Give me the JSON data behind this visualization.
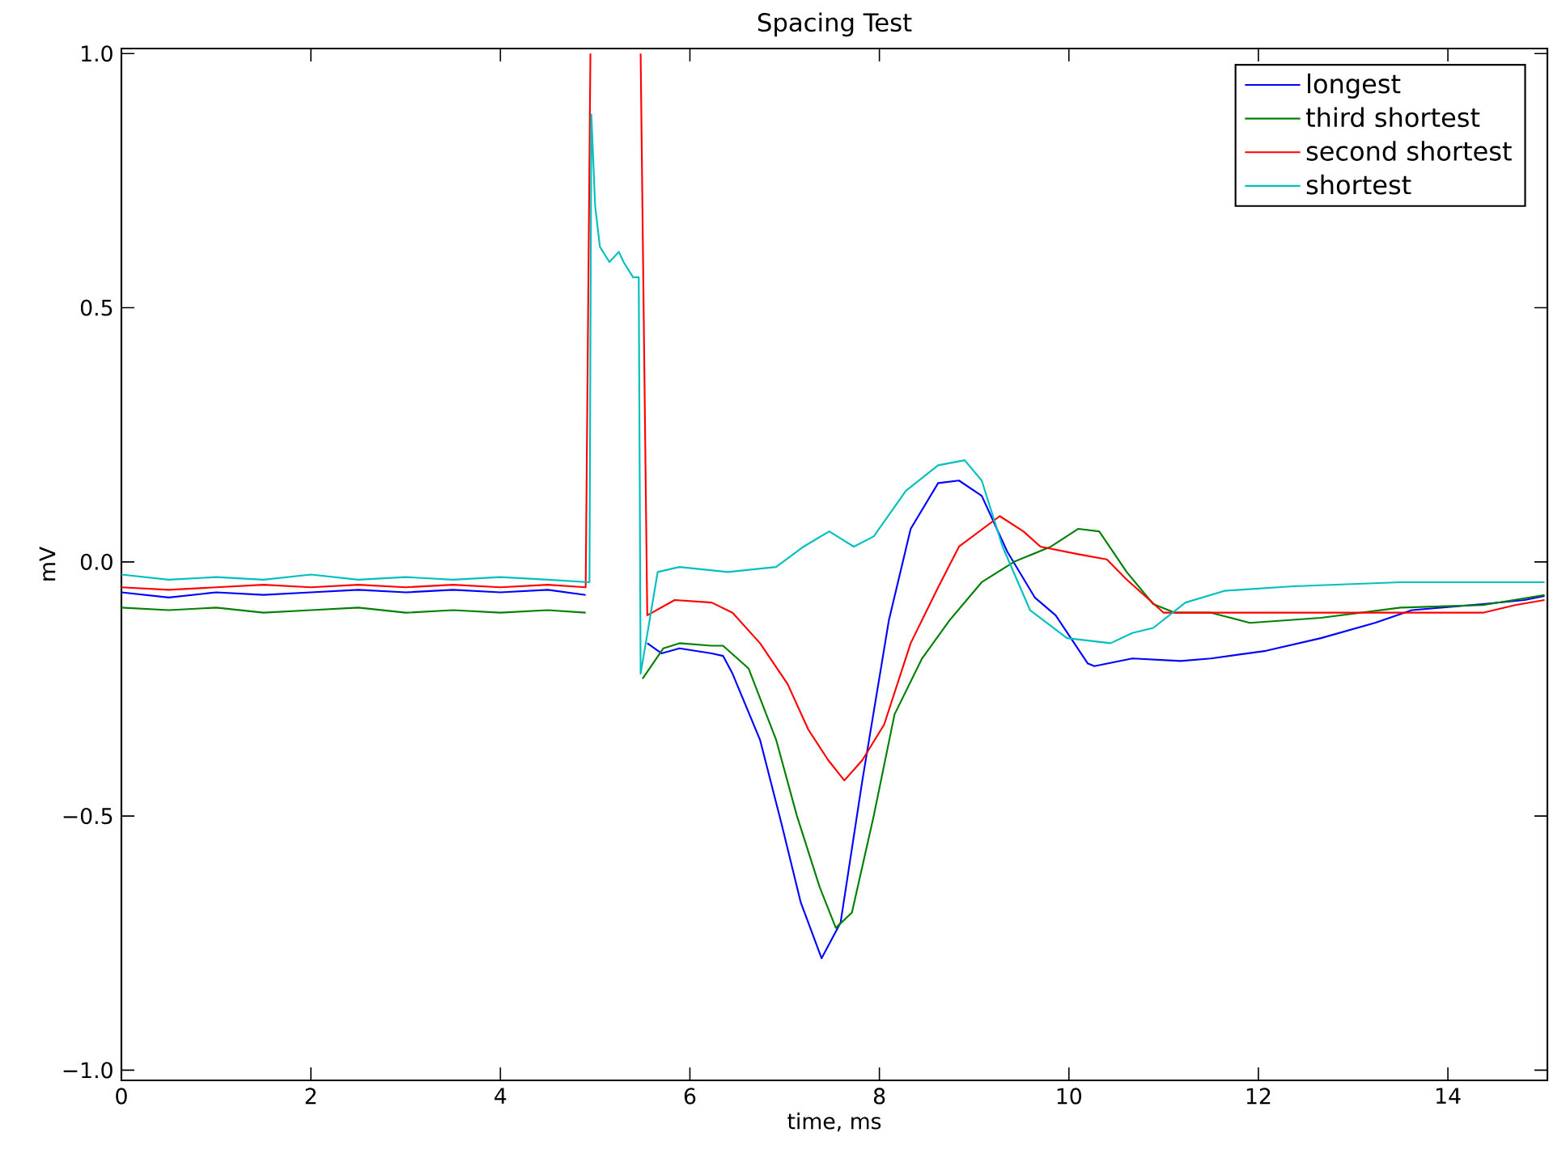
{
  "chart_data": {
    "type": "line",
    "title": "Spacing Test",
    "xlabel": "time, ms",
    "ylabel": "mV",
    "xlim": [
      0,
      15.05
    ],
    "ylim": [
      -1.02,
      1.01
    ],
    "xticks": [
      0,
      2,
      4,
      6,
      8,
      10,
      12,
      14
    ],
    "yticks": [
      {
        "value": -1.0,
        "label": "−1.0"
      },
      {
        "value": -0.5,
        "label": "−0.5"
      },
      {
        "value": 0.0,
        "label": "0.0"
      },
      {
        "value": 0.5,
        "label": "0.5"
      },
      {
        "value": 1.0,
        "label": "1.0"
      }
    ],
    "legend": "top right",
    "grid": false,
    "marker": "none",
    "line_style": "solid",
    "series": [
      {
        "name": "longest",
        "color": "#0000ff",
        "x": [
          0,
          0.5,
          1,
          1.5,
          2,
          2.5,
          3,
          3.5,
          4,
          4.5,
          4.9,
          4.95,
          4.96,
          5.47,
          5.48,
          5.55,
          5.7,
          5.89,
          6.23,
          6.35,
          6.45,
          6.74,
          6.96,
          7.17,
          7.39,
          7.59,
          7.82,
          8.1,
          8.33,
          8.62,
          8.84,
          9.08,
          9.35,
          9.64,
          9.86,
          10.2,
          10.27,
          10.67,
          11.18,
          11.5,
          12.08,
          12.66,
          13.23,
          13.62,
          14.37,
          14.81,
          15.02
        ],
        "values": [
          -0.06,
          -0.07,
          -0.06,
          -0.065,
          -0.06,
          -0.055,
          -0.06,
          -0.055,
          -0.06,
          -0.055,
          -0.065,
          null,
          null,
          null,
          null,
          -0.16,
          -0.18,
          -0.17,
          -0.18,
          -0.185,
          -0.22,
          -0.35,
          -0.51,
          -0.67,
          -0.78,
          -0.71,
          -0.43,
          -0.115,
          0.065,
          0.155,
          0.16,
          0.13,
          0.02,
          -0.07,
          -0.105,
          -0.2,
          -0.205,
          -0.19,
          -0.195,
          -0.19,
          -0.175,
          -0.15,
          -0.12,
          -0.095,
          -0.083,
          -0.075,
          -0.067
        ]
      },
      {
        "name": "third shortest",
        "color": "#008000",
        "x": [
          0,
          0.5,
          1,
          1.5,
          2,
          2.5,
          3,
          3.5,
          4,
          4.5,
          4.9,
          4.95,
          4.96,
          5.47,
          5.5,
          5.72,
          5.89,
          6.23,
          6.35,
          6.62,
          6.91,
          7.13,
          7.37,
          7.54,
          7.71,
          7.94,
          8.16,
          8.45,
          8.74,
          9.08,
          9.42,
          9.81,
          10.1,
          10.32,
          10.61,
          10.89,
          11.12,
          11.5,
          11.91,
          12.66,
          13.5,
          14.37,
          15.02
        ],
        "values": [
          -0.09,
          -0.095,
          -0.09,
          -0.1,
          -0.095,
          -0.09,
          -0.1,
          -0.095,
          -0.1,
          -0.095,
          -0.1,
          null,
          null,
          null,
          -0.23,
          -0.17,
          -0.16,
          -0.165,
          -0.165,
          -0.21,
          -0.35,
          -0.5,
          -0.64,
          -0.72,
          -0.69,
          -0.5,
          -0.3,
          -0.19,
          -0.115,
          -0.04,
          0.0,
          0.03,
          0.065,
          0.06,
          -0.02,
          -0.083,
          -0.1,
          -0.1,
          -0.12,
          -0.11,
          -0.09,
          -0.085,
          -0.065
        ]
      },
      {
        "name": "second shortest",
        "color": "#ff0000",
        "x": [
          0,
          0.5,
          1,
          1.5,
          2,
          2.5,
          3,
          3.5,
          4,
          4.5,
          4.9,
          4.95,
          4.96,
          5.47,
          5.48,
          5.55,
          5.84,
          6.23,
          6.45,
          6.74,
          7.03,
          7.25,
          7.46,
          7.63,
          7.82,
          8.05,
          8.33,
          8.62,
          8.84,
          9.27,
          9.52,
          9.7,
          10.1,
          10.4,
          10.61,
          10.84,
          11.0,
          11.5,
          12.37,
          13.5,
          14.37,
          14.71,
          15.02
        ],
        "values": [
          -0.05,
          -0.055,
          -0.05,
          -0.045,
          -0.05,
          -0.045,
          -0.05,
          -0.045,
          -0.05,
          -0.045,
          -0.05,
          1.0,
          null,
          null,
          1.0,
          -0.105,
          -0.075,
          -0.08,
          -0.1,
          -0.16,
          -0.24,
          -0.33,
          -0.39,
          -0.43,
          -0.39,
          -0.32,
          -0.16,
          -0.05,
          0.03,
          0.09,
          0.06,
          0.03,
          0.015,
          0.005,
          -0.035,
          -0.073,
          -0.1,
          -0.1,
          -0.1,
          -0.1,
          -0.1,
          -0.085,
          -0.075
        ]
      },
      {
        "name": "shortest",
        "color": "#00bfbf",
        "x": [
          0,
          0.5,
          1,
          1.5,
          2,
          2.5,
          3,
          3.5,
          4,
          4.5,
          4.94,
          4.96,
          5.0,
          5.05,
          5.15,
          5.25,
          5.3,
          5.4,
          5.46,
          5.48,
          5.66,
          5.89,
          6.4,
          6.91,
          7.2,
          7.47,
          7.73,
          7.94,
          8.28,
          8.62,
          8.9,
          9.08,
          9.3,
          9.59,
          9.98,
          10.44,
          10.67,
          10.89,
          11.23,
          11.64,
          12.37,
          13.5,
          14.37,
          15.02
        ],
        "values": [
          -0.025,
          -0.035,
          -0.03,
          -0.035,
          -0.025,
          -0.035,
          -0.03,
          -0.035,
          -0.03,
          -0.035,
          -0.04,
          0.88,
          0.7,
          0.62,
          0.59,
          0.61,
          0.59,
          0.56,
          0.56,
          -0.22,
          -0.02,
          -0.01,
          -0.02,
          -0.01,
          0.03,
          0.06,
          0.03,
          0.05,
          0.14,
          0.19,
          0.2,
          0.16,
          0.03,
          -0.095,
          -0.15,
          -0.16,
          -0.14,
          -0.13,
          -0.08,
          -0.057,
          -0.048,
          -0.04,
          -0.04,
          -0.04
        ]
      }
    ]
  }
}
